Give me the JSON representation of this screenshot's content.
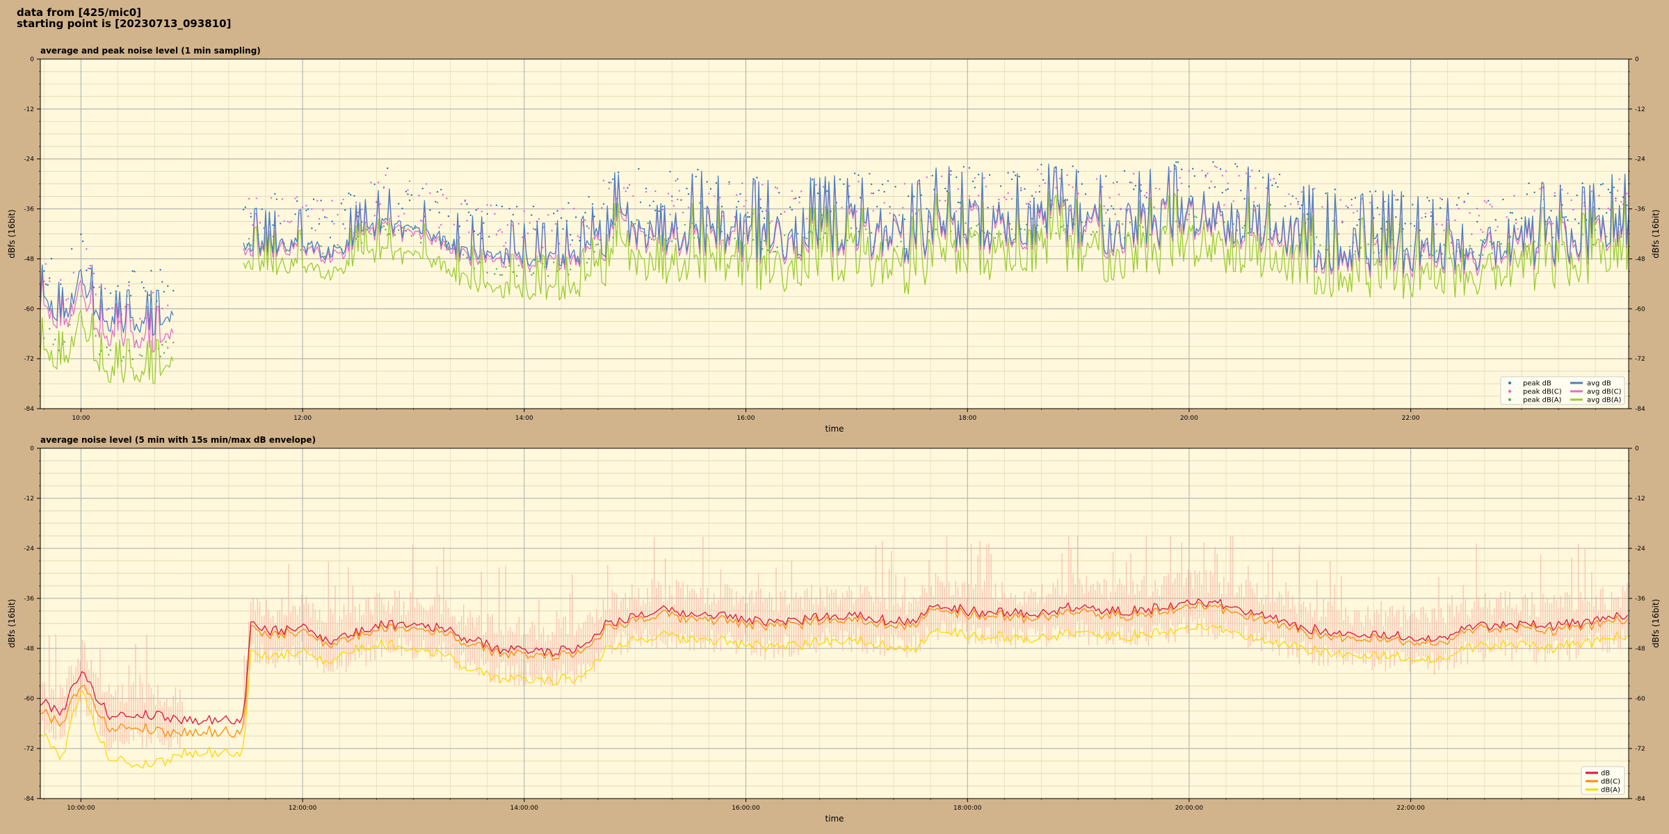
{
  "header": {
    "line1": "data from [425/mic0]",
    "line2": "starting point is [20230713_093810]"
  },
  "colors": {
    "background": "#d2b48c",
    "plot_bg": "#fff8dc",
    "peak_db": "#1f77b4",
    "peak_dbc": "#e35be3",
    "peak_dba": "#4caf50",
    "avg_db": "#4a7fc1",
    "avg_dbc": "#e070c8",
    "avg_dba": "#9acd32",
    "db": "#dc143c",
    "dbc": "#ff8c00",
    "dba": "#ffd700",
    "envelope": "#f4b6a6"
  },
  "chart_data": [
    {
      "type": "line",
      "title": "average and peak noise level (1 min sampling)",
      "xlabel": "time",
      "ylabel": "dBfs (16bit)",
      "ylim": [
        -84,
        0
      ],
      "yticks": [
        "0",
        "-12",
        "-24",
        "-36",
        "-48",
        "-60",
        "-72",
        "-84"
      ],
      "xlim": [
        "09:38",
        "23:58"
      ],
      "xticks": [
        "10:00",
        "12:00",
        "14:00",
        "16:00",
        "18:00",
        "20:00",
        "22:00"
      ],
      "grid": true,
      "legend_position": "bottom-right",
      "legend": [
        "peak dB",
        "peak dB(C)",
        "peak dB(A)",
        "avg dB",
        "avg dB(C)",
        "avg dB(A)"
      ],
      "gaps": [
        [
          "10:50",
          "11:28"
        ]
      ],
      "series": [
        {
          "name": "avg dB",
          "x": [
            "09:38",
            "09:50",
            "10:00",
            "10:10",
            "10:20",
            "10:30",
            "10:40",
            "10:50",
            "11:30",
            "11:45",
            "12:00",
            "12:15",
            "12:30",
            "12:45",
            "13:00",
            "13:15",
            "13:30",
            "13:45",
            "14:00",
            "14:15",
            "14:30",
            "14:45",
            "15:00",
            "15:15",
            "15:30",
            "15:45",
            "16:00",
            "16:15",
            "16:30",
            "16:45",
            "17:00",
            "17:15",
            "17:30",
            "17:45",
            "18:00",
            "18:15",
            "18:30",
            "18:45",
            "19:00",
            "19:15",
            "19:30",
            "19:45",
            "20:00",
            "20:15",
            "20:30",
            "20:45",
            "21:00",
            "21:15",
            "21:30",
            "21:45",
            "22:00",
            "22:15",
            "22:30",
            "22:45",
            "23:00",
            "23:15",
            "23:30",
            "23:45",
            "23:58"
          ],
          "values": [
            -57,
            -63,
            -52,
            -62,
            -64,
            -63,
            -64,
            -62,
            -44,
            -45,
            -44,
            -46,
            -43,
            -39,
            -41,
            -43,
            -46,
            -47,
            -47.5,
            -47.5,
            -47,
            -40,
            -38,
            -40,
            -39,
            -40,
            -41,
            -42,
            -41,
            -41,
            -40,
            -41,
            -42,
            -38,
            -39,
            -40,
            -39,
            -38,
            -38,
            -40,
            -39,
            -38,
            -37,
            -37,
            -38,
            -40,
            -42,
            -44,
            -45,
            -44,
            -45,
            -45,
            -45,
            -44,
            -43,
            -42,
            -43,
            -41,
            -40
          ]
        },
        {
          "name": "avg dB(C)",
          "x": [
            "09:38",
            "09:50",
            "10:00",
            "10:10",
            "10:20",
            "10:30",
            "10:40",
            "10:50",
            "11:30",
            "11:45",
            "12:00",
            "12:15",
            "12:30",
            "12:45",
            "13:00",
            "13:15",
            "13:30",
            "13:45",
            "14:00",
            "14:15",
            "14:30",
            "14:45",
            "15:00",
            "15:15",
            "15:30",
            "15:45",
            "16:00",
            "16:15",
            "16:30",
            "16:45",
            "17:00",
            "17:15",
            "17:30",
            "17:45",
            "18:00",
            "18:15",
            "18:30",
            "18:45",
            "19:00",
            "19:15",
            "19:30",
            "19:45",
            "20:00",
            "20:15",
            "20:30",
            "20:45",
            "21:00",
            "21:15",
            "21:30",
            "21:45",
            "22:00",
            "22:15",
            "22:30",
            "22:45",
            "23:00",
            "23:15",
            "23:30",
            "23:45",
            "23:58"
          ],
          "values": [
            -59,
            -65,
            -55,
            -66,
            -67,
            -67,
            -68,
            -66,
            -45,
            -46,
            -45,
            -47,
            -44,
            -40,
            -42,
            -44,
            -47,
            -48,
            -48.5,
            -48.5,
            -48,
            -41,
            -39,
            -41,
            -40,
            -41,
            -42,
            -43,
            -42,
            -42,
            -41,
            -42,
            -43,
            -39,
            -40,
            -41,
            -40,
            -39,
            -39,
            -41,
            -40,
            -39,
            -38,
            -38,
            -39,
            -41,
            -43,
            -45,
            -46,
            -45,
            -46,
            -46,
            -46,
            -45,
            -44,
            -43,
            -44,
            -42,
            -41
          ]
        },
        {
          "name": "avg dB(A)",
          "x": [
            "09:38",
            "09:50",
            "10:00",
            "10:10",
            "10:20",
            "10:30",
            "10:40",
            "10:50",
            "11:30",
            "11:45",
            "12:00",
            "12:15",
            "12:30",
            "12:45",
            "13:00",
            "13:15",
            "13:30",
            "13:45",
            "14:00",
            "14:15",
            "14:30",
            "14:45",
            "15:00",
            "15:15",
            "15:30",
            "15:45",
            "16:00",
            "16:15",
            "16:30",
            "16:45",
            "17:00",
            "17:15",
            "17:30",
            "17:45",
            "18:00",
            "18:15",
            "18:30",
            "18:45",
            "19:00",
            "19:15",
            "19:30",
            "19:45",
            "20:00",
            "20:15",
            "20:30",
            "20:45",
            "21:00",
            "21:15",
            "21:30",
            "21:45",
            "22:00",
            "22:15",
            "22:30",
            "22:45",
            "23:00",
            "23:15",
            "23:30",
            "23:45",
            "23:58"
          ],
          "values": [
            -70,
            -74,
            -62,
            -74,
            -76,
            -75,
            -76,
            -73,
            -48,
            -50,
            -49,
            -51,
            -48,
            -46,
            -47,
            -49,
            -53,
            -55,
            -55.5,
            -55.5,
            -55,
            -47,
            -45,
            -48,
            -46,
            -47,
            -48,
            -50,
            -48,
            -48,
            -47,
            -49,
            -50,
            -44,
            -46,
            -47,
            -45,
            -45,
            -45,
            -47,
            -46,
            -45,
            -44,
            -44,
            -45,
            -47,
            -49,
            -50,
            -51,
            -50,
            -51,
            -51,
            -51,
            -50,
            -49,
            -48,
            -49,
            -47,
            -46
          ]
        }
      ]
    },
    {
      "type": "line",
      "title": "average noise level (5 min with 15s min/max dB envelope)",
      "xlabel": "time",
      "ylabel": "dBfs (16bit)",
      "ylim": [
        -84,
        0
      ],
      "yticks": [
        "0",
        "-12",
        "-24",
        "-36",
        "-48",
        "-60",
        "-72",
        "-84"
      ],
      "xlim": [
        "09:38",
        "23:58"
      ],
      "xticks": [
        "10:00:00",
        "12:00:00",
        "14:00:00",
        "16:00:00",
        "18:00:00",
        "20:00:00",
        "22:00:00"
      ],
      "grid": true,
      "legend_position": "bottom-right",
      "legend": [
        "dB",
        "dB(C)",
        "dB(A)"
      ],
      "series": [
        {
          "name": "dB",
          "x": [
            "09:38",
            "09:50",
            "10:00",
            "10:05",
            "10:15",
            "10:30",
            "10:45",
            "10:55",
            "11:28",
            "11:32",
            "11:45",
            "12:00",
            "12:15",
            "12:30",
            "12:45",
            "13:00",
            "13:15",
            "13:30",
            "13:45",
            "14:00",
            "14:15",
            "14:30",
            "14:45",
            "15:00",
            "15:15",
            "15:30",
            "15:45",
            "16:00",
            "16:15",
            "16:30",
            "16:45",
            "17:00",
            "17:15",
            "17:30",
            "17:45",
            "18:00",
            "18:15",
            "18:30",
            "18:45",
            "19:00",
            "19:15",
            "19:30",
            "19:45",
            "20:00",
            "20:15",
            "20:30",
            "20:45",
            "21:00",
            "21:15",
            "21:30",
            "21:45",
            "22:00",
            "22:15",
            "22:30",
            "22:45",
            "23:00",
            "23:15",
            "23:30",
            "23:45",
            "23:58"
          ],
          "values": [
            -61,
            -63,
            -53,
            -57,
            -64,
            -64,
            -64,
            -65,
            -65,
            -42,
            -44,
            -43,
            -46,
            -44,
            -42,
            -42,
            -43,
            -46,
            -48,
            -48.5,
            -48.5,
            -48,
            -42,
            -40,
            -39,
            -40,
            -40,
            -41,
            -42,
            -41,
            -40,
            -40,
            -41,
            -42,
            -37,
            -39,
            -39,
            -40,
            -39,
            -38,
            -39,
            -39,
            -38,
            -37,
            -37,
            -39,
            -41,
            -43,
            -44,
            -45,
            -45,
            -45,
            -46,
            -43,
            -42,
            -42,
            -43,
            -42,
            -41,
            -40
          ]
        },
        {
          "name": "dB(C)",
          "x": [
            "09:38",
            "09:50",
            "10:00",
            "10:05",
            "10:15",
            "10:30",
            "10:45",
            "10:55",
            "11:28",
            "11:32",
            "11:45",
            "12:00",
            "12:15",
            "12:30",
            "12:45",
            "13:00",
            "13:15",
            "13:30",
            "13:45",
            "14:00",
            "14:15",
            "14:30",
            "14:45",
            "15:00",
            "15:15",
            "15:30",
            "15:45",
            "16:00",
            "16:15",
            "16:30",
            "16:45",
            "17:00",
            "17:15",
            "17:30",
            "17:45",
            "18:00",
            "18:15",
            "18:30",
            "18:45",
            "19:00",
            "19:15",
            "19:30",
            "19:45",
            "20:00",
            "20:15",
            "20:30",
            "20:45",
            "21:00",
            "21:15",
            "21:30",
            "21:45",
            "22:00",
            "22:15",
            "22:30",
            "22:45",
            "23:00",
            "23:15",
            "23:30",
            "23:45",
            "23:58"
          ],
          "values": [
            -63,
            -66,
            -56,
            -60,
            -67,
            -67,
            -68,
            -68,
            -68,
            -43,
            -45,
            -44,
            -47,
            -45,
            -43,
            -43,
            -44,
            -47,
            -49,
            -49.5,
            -49.5,
            -49,
            -43,
            -41,
            -40,
            -41,
            -41,
            -42,
            -43,
            -42,
            -41,
            -41,
            -42,
            -43,
            -38,
            -40,
            -40,
            -41,
            -40,
            -39,
            -40,
            -40,
            -39,
            -38,
            -38,
            -40,
            -42,
            -44,
            -45,
            -46,
            -46,
            -46,
            -47,
            -44,
            -43,
            -43,
            -44,
            -43,
            -42,
            -41
          ]
        },
        {
          "name": "dB(A)",
          "x": [
            "09:38",
            "09:50",
            "10:00",
            "10:05",
            "10:15",
            "10:30",
            "10:45",
            "10:55",
            "11:28",
            "11:32",
            "11:45",
            "12:00",
            "12:15",
            "12:30",
            "12:45",
            "13:00",
            "13:15",
            "13:30",
            "13:45",
            "14:00",
            "14:15",
            "14:30",
            "14:45",
            "15:00",
            "15:15",
            "15:30",
            "15:45",
            "16:00",
            "16:15",
            "16:30",
            "16:45",
            "17:00",
            "17:15",
            "17:30",
            "17:45",
            "18:00",
            "18:15",
            "18:30",
            "18:45",
            "19:00",
            "19:15",
            "19:30",
            "19:45",
            "20:00",
            "20:15",
            "20:30",
            "20:45",
            "21:00",
            "21:15",
            "21:30",
            "21:45",
            "22:00",
            "22:15",
            "22:30",
            "22:45",
            "23:00",
            "23:15",
            "23:30",
            "23:45",
            "23:58"
          ],
          "values": [
            -68,
            -74,
            -57,
            -64,
            -74,
            -76,
            -75,
            -73,
            -73,
            -49,
            -50,
            -49,
            -51,
            -48,
            -47,
            -48,
            -49,
            -53,
            -55,
            -55.5,
            -55.5,
            -55,
            -48,
            -46,
            -45,
            -46,
            -46,
            -47,
            -48,
            -47,
            -46,
            -46,
            -47,
            -49,
            -43,
            -45,
            -45,
            -46,
            -45,
            -44,
            -45,
            -45,
            -44,
            -43,
            -43,
            -45,
            -47,
            -48,
            -49,
            -50,
            -50,
            -50,
            -51,
            -48,
            -47,
            -47,
            -48,
            -47,
            -46,
            -45
          ]
        }
      ]
    }
  ]
}
